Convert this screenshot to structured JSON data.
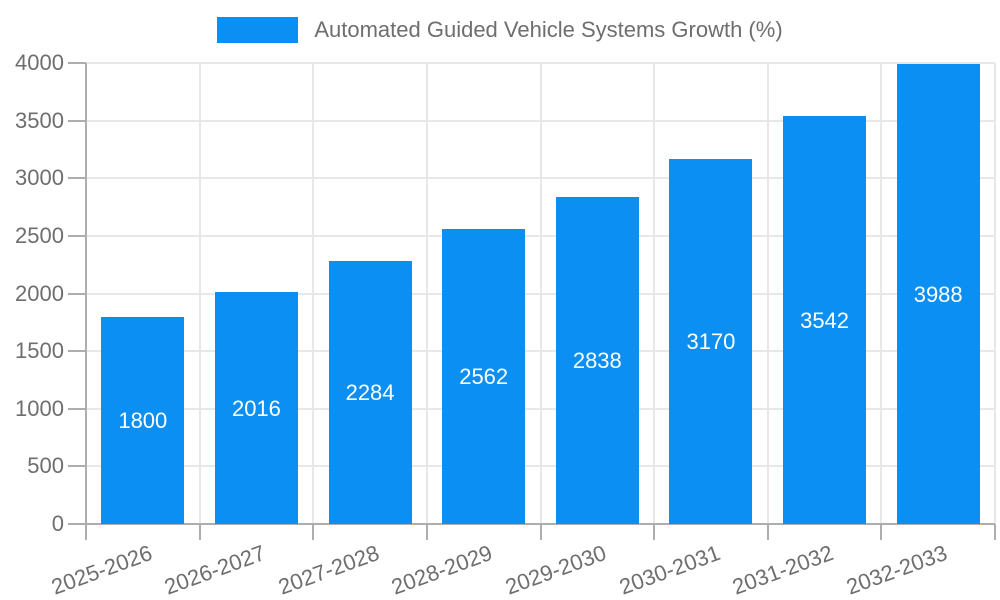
{
  "legend": {
    "label": "Automated Guided Vehicle Systems Growth (%)"
  },
  "chart_data": {
    "type": "bar",
    "title": "Automated Guided Vehicle Systems Growth (%)",
    "categories": [
      "2025-2026",
      "2026-2027",
      "2027-2028",
      "2028-2029",
      "2029-2030",
      "2030-2031",
      "2031-2032",
      "2032-2033"
    ],
    "values": [
      1800,
      2016,
      2284,
      2562,
      2838,
      3170,
      3542,
      3988
    ],
    "xlabel": "",
    "ylabel": "",
    "ylim": [
      0,
      4000
    ],
    "ytick_step": 500,
    "yticks": [
      0,
      500,
      1000,
      1500,
      2000,
      2500,
      3000,
      3500,
      4000
    ],
    "grid": true,
    "legend_position": "top",
    "bar_color": "#0b8ff2",
    "value_label_color": "#ffffff",
    "axis_text_color": "#6e6e6e",
    "gridline_color": "#e8e8e8",
    "axis_line_color": "#adadad"
  }
}
